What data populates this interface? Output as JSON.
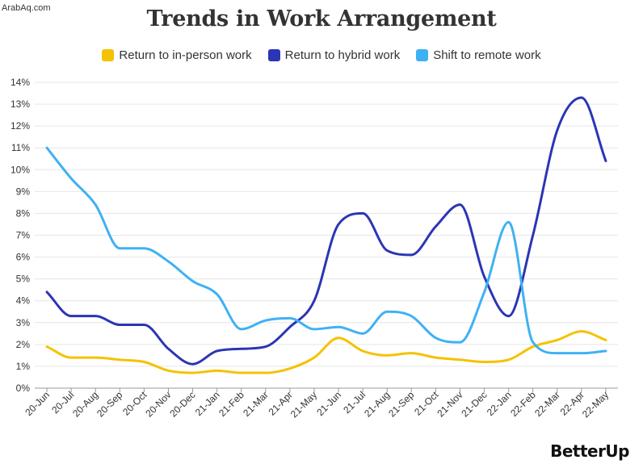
{
  "watermark": "ArabAq.com",
  "brand": "BetterUp",
  "chart_data": {
    "type": "line",
    "title": "Trends in Work Arrangement",
    "xlabel": "",
    "ylabel": "",
    "ylim": [
      0,
      14
    ],
    "y_ticks": [
      "0%",
      "1%",
      "2%",
      "3%",
      "4%",
      "5%",
      "6%",
      "7%",
      "8%",
      "9%",
      "10%",
      "11%",
      "12%",
      "13%",
      "14%"
    ],
    "grid": true,
    "legend_position": "top",
    "categories": [
      "20-Jun",
      "20-Jul",
      "20-Aug",
      "20-Sep",
      "20-Oct",
      "20-Nov",
      "20-Dec",
      "21-Jan",
      "21-Feb",
      "21-Mar",
      "21-Apr",
      "21-May",
      "21-Jun",
      "21-Jul",
      "21-Aug",
      "21-Sep",
      "21-Oct",
      "21-Nov",
      "21-Dec",
      "22-Jan",
      "22-Feb",
      "22-Mar",
      "22-Apr",
      "22-May"
    ],
    "series": [
      {
        "name": "Return to in-person work",
        "color": "#f5c200",
        "values": [
          1.9,
          1.4,
          1.4,
          1.3,
          1.2,
          0.8,
          0.7,
          0.8,
          0.7,
          0.7,
          0.9,
          1.4,
          2.3,
          1.7,
          1.5,
          1.6,
          1.4,
          1.3,
          1.2,
          1.3,
          1.9,
          2.2,
          2.6,
          2.2
        ]
      },
      {
        "name": "Return to hybrid work",
        "color": "#2b35b5",
        "values": [
          4.4,
          3.3,
          3.3,
          2.9,
          2.9,
          1.8,
          1.1,
          1.7,
          1.8,
          1.9,
          2.8,
          4.0,
          7.5,
          8.0,
          6.3,
          6.1,
          7.4,
          8.4,
          5.1,
          3.3,
          7.0,
          11.8,
          13.3,
          10.4
        ]
      },
      {
        "name": "Shift to remote work",
        "color": "#3fb1f3",
        "values": [
          11.0,
          9.6,
          8.4,
          6.4,
          6.4,
          5.8,
          4.9,
          4.3,
          2.7,
          3.1,
          3.2,
          2.7,
          2.8,
          2.5,
          3.5,
          3.3,
          2.3,
          2.1,
          4.4,
          7.6,
          2.1,
          1.6,
          1.6,
          1.7
        ]
      }
    ]
  }
}
